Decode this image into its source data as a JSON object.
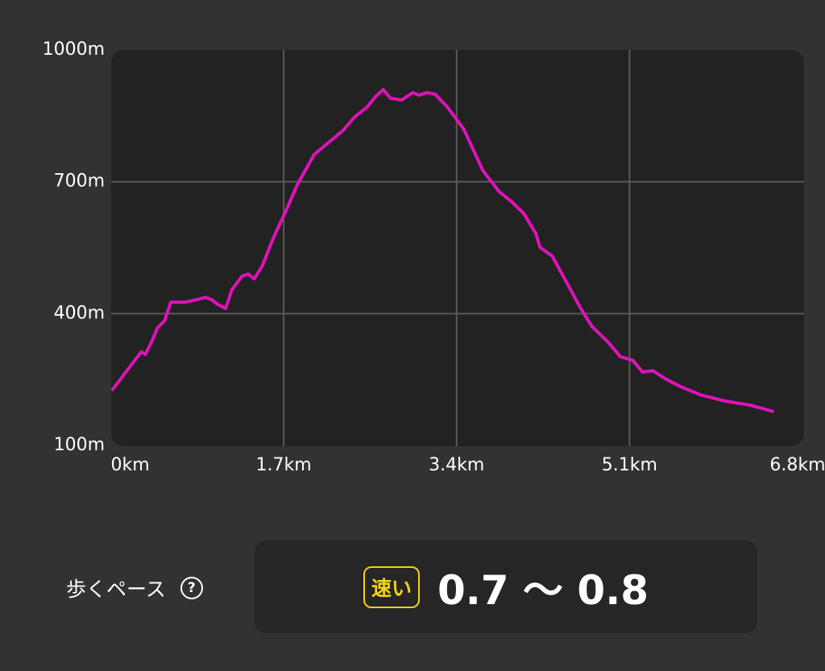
{
  "chart_data": {
    "type": "line",
    "x": [
      0.01,
      0.1,
      0.22,
      0.3,
      0.34,
      0.4,
      0.46,
      0.53,
      0.59,
      0.73,
      0.85,
      0.93,
      0.99,
      1.05,
      1.13,
      1.19,
      1.29,
      1.35,
      1.41,
      1.49,
      1.6,
      1.72,
      1.84,
      2.0,
      2.16,
      2.28,
      2.4,
      2.52,
      2.6,
      2.68,
      2.75,
      2.86,
      2.97,
      3.03,
      3.11,
      3.19,
      3.31,
      3.47,
      3.66,
      3.82,
      3.94,
      4.06,
      4.18,
      4.22,
      4.34,
      4.5,
      4.62,
      4.73,
      4.89,
      5.01,
      5.13,
      5.23,
      5.33,
      5.45,
      5.6,
      5.8,
      6.04,
      6.28,
      6.52
    ],
    "series": [
      {
        "color": "#e012b9",
        "values": [
          225,
          252,
          289,
          313,
          307,
          335,
          368,
          384,
          426,
          426,
          432,
          437,
          432,
          421,
          412,
          454,
          485,
          490,
          479,
          509,
          573,
          633,
          696,
          762,
          793,
          816,
          848,
          870,
          893,
          910,
          890,
          886,
          903,
          897,
          903,
          899,
          870,
          820,
          725,
          677,
          655,
          628,
          582,
          551,
          531,
          463,
          412,
          371,
          335,
          302,
          294,
          267,
          270,
          252,
          234,
          215,
          201,
          192,
          177
        ]
      }
    ],
    "xlim": [
      0,
      6.8
    ],
    "xticks": [
      {
        "value": 0,
        "label": "0km"
      },
      {
        "value": 1.7,
        "label": "1.7km"
      },
      {
        "value": 3.4,
        "label": "3.4km"
      },
      {
        "value": 5.1,
        "label": "5.1km"
      },
      {
        "value": 6.8,
        "label": "6.8km"
      }
    ],
    "ylim": [
      100,
      1000
    ],
    "yticks": [
      {
        "value": 100,
        "label": "100m"
      },
      {
        "value": 400,
        "label": "400m"
      },
      {
        "value": 700,
        "label": "700m"
      },
      {
        "value": 1000,
        "label": "1000m"
      }
    ],
    "grid": true
  },
  "pace": {
    "label": "歩くペース",
    "help": "?",
    "badge": "速い",
    "value": "0.7 〜 0.8"
  }
}
